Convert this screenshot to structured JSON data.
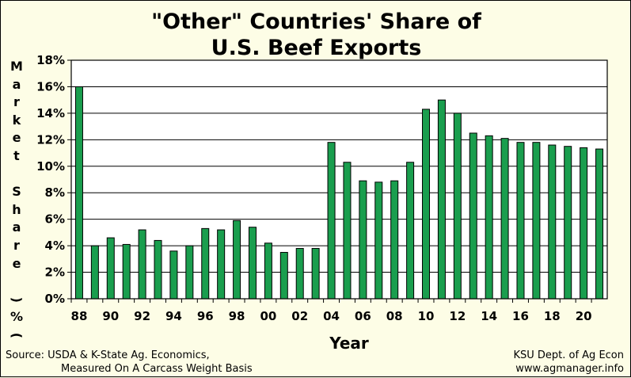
{
  "chart_data": {
    "type": "bar",
    "title_lines": [
      "\"Other\" Countries' Share of",
      "U.S. Beef Exports"
    ],
    "xlabel": "Year",
    "ylabel": "Market Share (%)",
    "ylim": [
      0,
      18
    ],
    "ytick_values": [
      0,
      2,
      4,
      6,
      8,
      10,
      12,
      14,
      16,
      18
    ],
    "ytick_labels": [
      "0%",
      "2%",
      "4%",
      "6%",
      "8%",
      "10%",
      "12%",
      "14%",
      "16%",
      "18%"
    ],
    "categories": [
      "88",
      "89",
      "90",
      "91",
      "92",
      "93",
      "94",
      "95",
      "96",
      "97",
      "98",
      "99",
      "00",
      "01",
      "02",
      "03",
      "04",
      "05",
      "06",
      "07",
      "08",
      "09",
      "10",
      "11",
      "12",
      "13",
      "14",
      "15",
      "16",
      "17",
      "18",
      "19",
      "20",
      "21"
    ],
    "xtick_labels": [
      "88",
      "90",
      "92",
      "94",
      "96",
      "98",
      "00",
      "02",
      "04",
      "06",
      "08",
      "10",
      "12",
      "14",
      "16",
      "18",
      "20"
    ],
    "values": [
      16.0,
      4.0,
      4.6,
      4.1,
      5.2,
      4.4,
      3.6,
      4.0,
      5.3,
      5.2,
      5.9,
      5.4,
      4.2,
      3.5,
      3.8,
      3.8,
      11.8,
      10.3,
      8.9,
      8.8,
      8.9,
      10.3,
      14.3,
      15.0,
      14.0,
      12.5,
      12.3,
      12.1,
      11.8,
      11.8,
      11.6,
      11.5,
      11.4,
      11.3
    ],
    "grid": true,
    "bar_color": "#1a9e4e"
  },
  "source_note": [
    "Source:  USDA & K-State Ag. Economics,",
    "Measured On A Carcass Weight Basis"
  ],
  "credit_note": [
    "KSU Dept. of Ag Econ",
    "www.agmanager.info"
  ]
}
